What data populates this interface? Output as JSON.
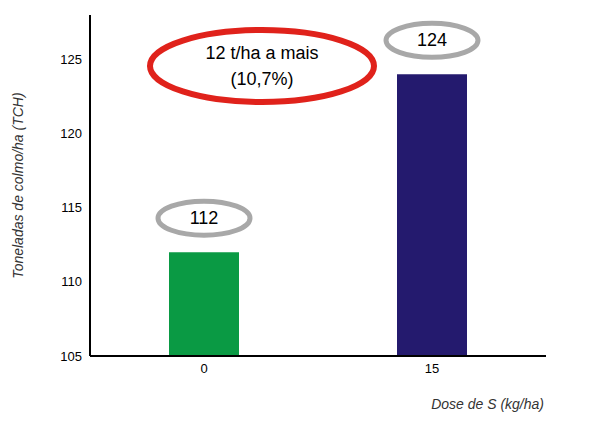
{
  "chart_data": {
    "type": "bar",
    "categories": [
      "0",
      "15"
    ],
    "values": [
      112,
      124
    ],
    "colors": [
      "#0a9a44",
      "#241a6e"
    ],
    "ylim": [
      105,
      128
    ],
    "yticks": [
      105,
      110,
      115,
      120,
      125
    ],
    "xlabel": "Dose de S (kg/ha)",
    "ylabel": "Toneladas de colmo/ha (TCH)",
    "annotation": [
      "12 t/ha a mais",
      "(10,7%)"
    ],
    "data_labels": true,
    "grid": false
  }
}
